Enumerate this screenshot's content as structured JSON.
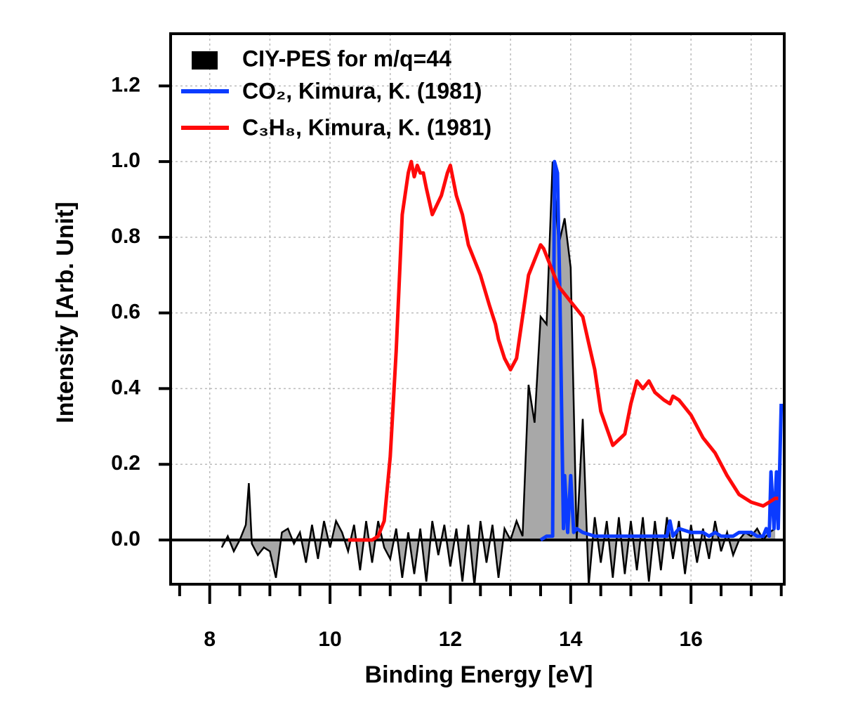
{
  "chart_data": {
    "type": "line",
    "xlabel": "Binding Energy [eV]",
    "ylabel": "Intensity [Arb. Unit]",
    "xlim": [
      7.35,
      17.55
    ],
    "ylim": [
      -0.117,
      1.338
    ],
    "xticks": [
      8,
      10,
      12,
      14,
      16
    ],
    "xminor_ticks": [
      7.5,
      8.5,
      9,
      9.5,
      10.5,
      11,
      11.5,
      12.5,
      13,
      13.5,
      14.5,
      15,
      15.5,
      16.5,
      17,
      17.5
    ],
    "xgrid": [
      8,
      9,
      10,
      11,
      12,
      13,
      14,
      15,
      16,
      17
    ],
    "yticks": [
      {
        "value": 0,
        "label": "0.0"
      },
      0.2,
      0.4,
      0.6,
      0.8,
      {
        "value": 1,
        "label": "1.0"
      },
      1.2
    ],
    "grid": true,
    "legend": "top-left",
    "series": [
      {
        "name": "CIY-PES for m/q=44",
        "color": "#a8a8a8",
        "line_color": "#000000",
        "fill": true,
        "x": [
          8.2,
          8.3,
          8.4,
          8.5,
          8.6,
          8.65,
          8.7,
          8.8,
          8.9,
          9.0,
          9.1,
          9.2,
          9.3,
          9.4,
          9.5,
          9.6,
          9.7,
          9.8,
          9.9,
          10.0,
          10.1,
          10.2,
          10.3,
          10.4,
          10.5,
          10.6,
          10.7,
          10.8,
          10.9,
          11.0,
          11.1,
          11.2,
          11.3,
          11.4,
          11.5,
          11.6,
          11.7,
          11.8,
          11.9,
          12.0,
          12.1,
          12.2,
          12.3,
          12.4,
          12.5,
          12.6,
          12.7,
          12.8,
          12.9,
          13.0,
          13.1,
          13.2,
          13.3,
          13.4,
          13.5,
          13.6,
          13.7,
          13.8,
          13.9,
          14.0,
          14.1,
          14.2,
          14.3,
          14.4,
          14.5,
          14.6,
          14.7,
          14.8,
          14.9,
          15.0,
          15.1,
          15.2,
          15.3,
          15.4,
          15.5,
          15.6,
          15.7,
          15.8,
          15.9,
          16.0,
          16.1,
          16.2,
          16.3,
          16.4,
          16.5,
          16.6,
          16.7,
          16.8,
          16.9,
          17.0,
          17.1,
          17.2,
          17.3,
          17.4
        ],
        "values": [
          -0.02,
          0.01,
          -0.03,
          0.0,
          0.04,
          0.15,
          -0.01,
          -0.04,
          -0.02,
          -0.03,
          -0.1,
          0.02,
          0.03,
          -0.01,
          0.02,
          -0.06,
          0.04,
          -0.05,
          0.05,
          -0.02,
          0.05,
          0.02,
          -0.03,
          0.04,
          -0.08,
          0.05,
          -0.06,
          0.05,
          -0.02,
          -0.05,
          0.03,
          -0.1,
          0.02,
          -0.09,
          0.03,
          -0.11,
          0.05,
          -0.04,
          0.04,
          -0.07,
          0.03,
          -0.11,
          0.04,
          -0.12,
          0.05,
          -0.06,
          0.04,
          -0.1,
          0.03,
          0.0,
          0.05,
          0.01,
          0.41,
          0.31,
          0.59,
          0.57,
          1.0,
          0.78,
          0.85,
          0.72,
          0.0,
          0.32,
          -0.12,
          0.06,
          -0.06,
          0.05,
          -0.1,
          0.06,
          -0.09,
          0.05,
          -0.08,
          0.06,
          -0.11,
          0.05,
          -0.08,
          0.06,
          -0.05,
          0.05,
          -0.09,
          0.04,
          -0.06,
          0.03,
          -0.05,
          0.05,
          -0.03,
          0.02,
          -0.04,
          0.0,
          0.02,
          0.01,
          0.03,
          0.0,
          0.02,
          0.03
        ]
      },
      {
        "name": "CO₂, Kimura, K. (1981)",
        "color": "#0b3bff",
        "x": [
          13.5,
          13.6,
          13.7,
          13.73,
          13.78,
          13.82,
          13.88,
          13.9,
          13.95,
          14.0,
          14.05,
          14.1,
          14.2,
          14.4,
          14.6,
          15.0,
          15.4,
          15.6,
          15.65,
          15.7,
          15.8,
          16.0,
          16.2,
          16.3,
          16.4,
          16.5,
          16.7,
          16.8,
          17.0,
          17.1,
          17.2,
          17.25,
          17.3,
          17.33,
          17.38,
          17.42,
          17.45,
          17.5
        ],
        "values": [
          0.0,
          0.01,
          0.01,
          1.0,
          0.97,
          0.65,
          0.03,
          0.17,
          0.02,
          0.17,
          0.02,
          0.03,
          0.02,
          0.01,
          0.01,
          0.01,
          0.01,
          0.01,
          0.05,
          0.01,
          0.03,
          0.02,
          0.02,
          0.01,
          0.02,
          0.01,
          0.01,
          0.02,
          0.02,
          0.01,
          0.01,
          0.03,
          0.01,
          0.18,
          0.03,
          0.18,
          0.03,
          0.36
        ]
      },
      {
        "name": "C₃H₈, Kimura, K. (1981)",
        "color": "#ff0a0a",
        "x": [
          10.3,
          10.5,
          10.7,
          10.8,
          10.9,
          11.0,
          11.1,
          11.2,
          11.3,
          11.35,
          11.4,
          11.45,
          11.5,
          11.55,
          11.6,
          11.7,
          11.85,
          11.95,
          12.0,
          12.1,
          12.2,
          12.3,
          12.5,
          12.65,
          12.75,
          12.8,
          12.9,
          13.0,
          13.1,
          13.2,
          13.3,
          13.4,
          13.5,
          13.55,
          13.65,
          13.8,
          14.0,
          14.2,
          14.3,
          14.4,
          14.5,
          14.7,
          14.9,
          15.0,
          15.1,
          15.2,
          15.3,
          15.4,
          15.55,
          15.65,
          15.7,
          15.8,
          16.0,
          16.2,
          16.4,
          16.6,
          16.8,
          17.0,
          17.2,
          17.3,
          17.4,
          17.45
        ],
        "values": [
          0.0,
          0.0,
          0.0,
          0.01,
          0.05,
          0.22,
          0.5,
          0.86,
          0.97,
          1.0,
          0.96,
          0.99,
          0.97,
          0.97,
          0.93,
          0.86,
          0.91,
          0.97,
          0.99,
          0.91,
          0.86,
          0.78,
          0.7,
          0.62,
          0.57,
          0.53,
          0.48,
          0.45,
          0.48,
          0.59,
          0.7,
          0.74,
          0.78,
          0.77,
          0.73,
          0.67,
          0.63,
          0.59,
          0.52,
          0.45,
          0.34,
          0.25,
          0.28,
          0.36,
          0.42,
          0.4,
          0.42,
          0.39,
          0.37,
          0.36,
          0.38,
          0.37,
          0.33,
          0.27,
          0.23,
          0.17,
          0.12,
          0.1,
          0.09,
          0.1,
          0.11,
          0.11
        ]
      }
    ]
  }
}
